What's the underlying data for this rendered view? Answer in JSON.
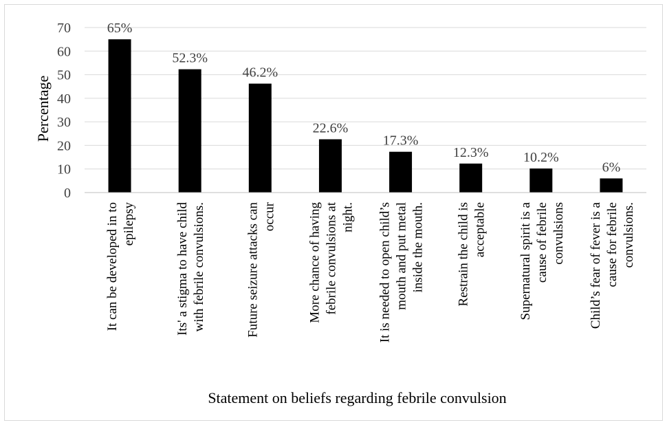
{
  "chart_data": {
    "type": "bar",
    "title": "",
    "xlabel": "Statement on beliefs regarding febrile convulsion",
    "ylabel": "Percentage",
    "ylim": [
      0,
      70
    ],
    "yticks": [
      0,
      10,
      20,
      30,
      40,
      50,
      60,
      70
    ],
    "grid": true,
    "bar_color": "#000000",
    "categories": [
      [
        "It can be developed in to",
        "epilepsy"
      ],
      [
        "Its' a stigma to have child",
        "with febrile convulsions."
      ],
      [
        "Future seizure attacks can",
        "occur"
      ],
      [
        "More chance of having",
        "febrile convulsions at",
        "night."
      ],
      [
        "It is needed to open child’s",
        "mouth and put metal",
        "inside the mouth."
      ],
      [
        "Restrain the child is",
        "acceptable"
      ],
      [
        "Supernatural spirit is a",
        "cause of  febrile",
        "convulsions"
      ],
      [
        "Child’s fear of fever is a",
        "cause for febrile",
        "convulsions."
      ]
    ],
    "values": [
      65,
      52.3,
      46.2,
      22.6,
      17.3,
      12.3,
      10.2,
      6
    ],
    "data_labels": [
      "65%",
      "52.3%",
      "46.2%",
      "22.6%",
      "17.3%",
      "12.3%",
      "10.2%",
      "6%"
    ]
  }
}
